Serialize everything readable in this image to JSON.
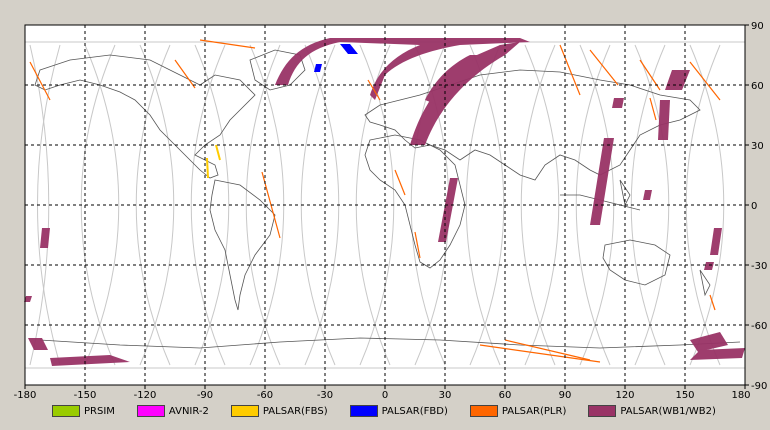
{
  "x_ticks": [
    "-180",
    "-150",
    "-120",
    "-90",
    "-60",
    "-30",
    "0",
    "30",
    "60",
    "90",
    "120",
    "150",
    "180"
  ],
  "y_ticks": [
    "90",
    "60",
    "30",
    "0",
    "-30",
    "-60",
    "-90"
  ],
  "legend": [
    {
      "label": "PRSIM",
      "color": "#99cc00"
    },
    {
      "label": "AVNIR-2",
      "color": "#ff00ff"
    },
    {
      "label": "PALSAR(FBS)",
      "color": "#ffcc00"
    },
    {
      "label": "PALSAR(FBD)",
      "color": "#0000ff"
    },
    {
      "label": "PALSAR(PLR)",
      "color": "#ff6600"
    },
    {
      "label": "PALSAR(WB1/WB2)",
      "color": "#993366"
    }
  ],
  "colors": {
    "wb": "#993366",
    "plr": "#ff6600",
    "fbd": "#0000ff",
    "fbs": "#ffcc00",
    "coast": "#555555",
    "orbit": "#c8c8c8",
    "grid": "#000000"
  }
}
